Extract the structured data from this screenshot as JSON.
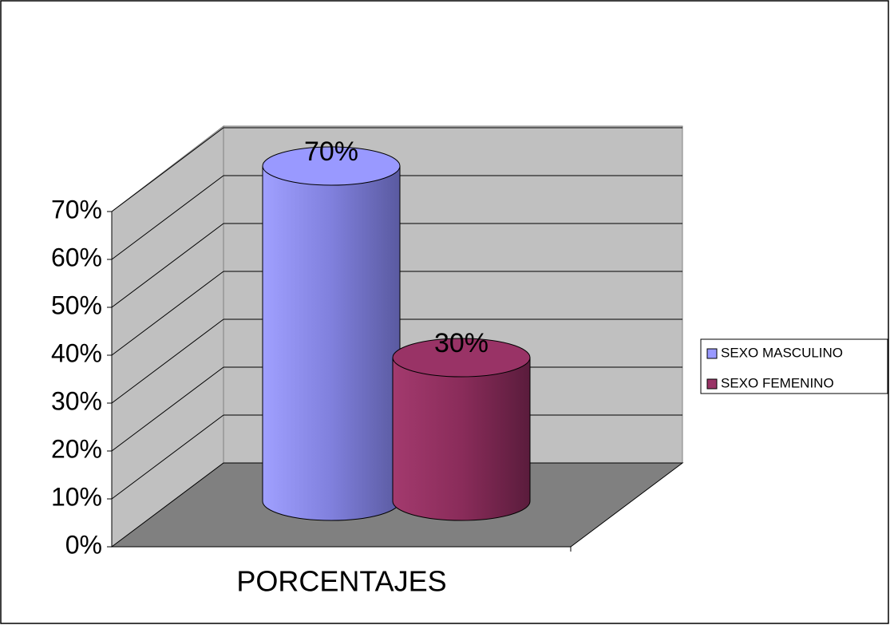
{
  "chart_data": {
    "type": "bar3d",
    "categories": [
      "PORCENTAJES"
    ],
    "series": [
      {
        "name": "SEXO MASCULINO",
        "color": "#9999ff",
        "values": [
          70
        ],
        "value_labels": [
          "70%"
        ]
      },
      {
        "name": "SEXO FEMENINO",
        "color": "#993366",
        "values": [
          30
        ],
        "value_labels": [
          "30%"
        ]
      }
    ],
    "ylim": [
      0,
      70
    ],
    "yticks": [
      {
        "value": 0,
        "label": "0%"
      },
      {
        "value": 10,
        "label": "10%"
      },
      {
        "value": 20,
        "label": "20%"
      },
      {
        "value": 30,
        "label": "30%"
      },
      {
        "value": 40,
        "label": "40%"
      },
      {
        "value": 50,
        "label": "50%"
      },
      {
        "value": 60,
        "label": "60%"
      },
      {
        "value": 70,
        "label": "70%"
      }
    ],
    "grid": true,
    "legend": "right"
  }
}
